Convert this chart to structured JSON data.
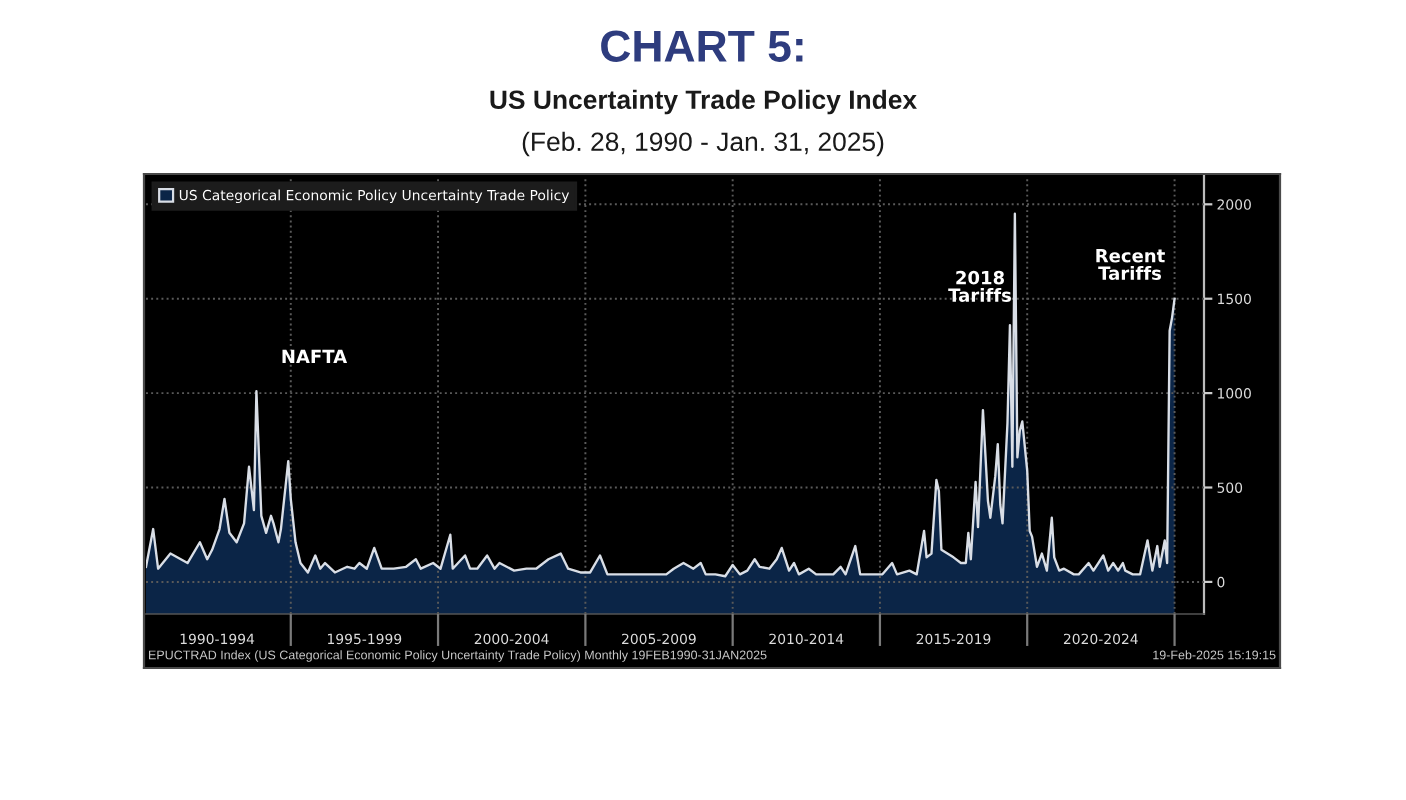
{
  "chart_data": {
    "type": "area",
    "title": "CHART 5:",
    "subtitle": "US Uncertainty Trade Policy Index\n(Feb. 28, 1990 - Jan. 31, 2025)",
    "x": [
      "1990-02",
      "1990-05",
      "1990-07",
      "1990-12",
      "1991-07",
      "1991-12",
      "1992-03",
      "1992-05",
      "1992-08",
      "1992-10",
      "1992-12",
      "1993-03",
      "1993-06",
      "1993-08",
      "1993-10",
      "1993-11",
      "1994-01",
      "1994-03",
      "1994-05",
      "1994-06",
      "1994-08",
      "1994-09",
      "1994-12",
      "1995-01",
      "1995-03",
      "1995-05",
      "1995-08",
      "1995-11",
      "1996-01",
      "1996-03",
      "1996-07",
      "1996-12",
      "1997-03",
      "1997-05",
      "1997-08",
      "1997-11",
      "1998-02",
      "1998-07",
      "1998-12",
      "1999-04",
      "1999-06",
      "1999-11",
      "2000-02",
      "2000-06",
      "2000-07",
      "2000-12",
      "2001-02",
      "2001-05",
      "2001-09",
      "2001-12",
      "2002-02",
      "2002-08",
      "2003-01",
      "2003-05",
      "2003-10",
      "2004-03",
      "2004-06",
      "2004-11",
      "2005-03",
      "2005-07",
      "2005-10",
      "2006-12",
      "2007-10",
      "2008-01",
      "2008-05",
      "2008-09",
      "2008-12",
      "2009-02",
      "2009-06",
      "2009-10",
      "2010-01",
      "2010-04",
      "2010-07",
      "2010-10",
      "2010-12",
      "2011-04",
      "2011-07",
      "2011-09",
      "2011-12",
      "2012-02",
      "2012-04",
      "2012-08",
      "2012-11",
      "2013-06",
      "2013-09",
      "2013-11",
      "2014-03",
      "2014-05",
      "2014-10",
      "2015-02",
      "2015-06",
      "2015-08",
      "2016-01",
      "2016-04",
      "2016-07",
      "2016-08",
      "2016-10",
      "2016-12",
      "2017-01",
      "2017-02",
      "2017-07",
      "2017-10",
      "2017-12",
      "2018-01",
      "2018-02",
      "2018-04",
      "2018-05",
      "2018-07",
      "2018-09",
      "2018-10",
      "2018-12",
      "2019-01",
      "2019-02",
      "2019-03",
      "2019-05",
      "2019-06",
      "2019-07",
      "2019-08",
      "2019-09",
      "2019-10",
      "2019-11",
      "2020-01",
      "2020-02",
      "2020-03",
      "2020-05",
      "2020-07",
      "2020-09",
      "2020-11",
      "2020-12",
      "2021-02",
      "2021-04",
      "2021-08",
      "2021-10",
      "2022-02",
      "2022-04",
      "2022-06",
      "2022-08",
      "2022-10",
      "2022-12",
      "2023-02",
      "2023-04",
      "2023-05",
      "2023-08",
      "2023-11",
      "2024-02",
      "2024-04",
      "2024-06",
      "2024-07",
      "2024-09",
      "2024-10",
      "2024-11",
      "2024-12",
      "2025-01"
    ],
    "series": [
      {
        "name": "US Categorical Economic Policy Uncertainty Trade Policy",
        "color": "#0b2547",
        "values": [
          80,
          280,
          70,
          150,
          100,
          210,
          120,
          170,
          280,
          440,
          260,
          210,
          310,
          610,
          380,
          1010,
          350,
          260,
          350,
          310,
          210,
          280,
          640,
          440,
          210,
          100,
          50,
          140,
          70,
          100,
          50,
          80,
          70,
          100,
          70,
          180,
          70,
          70,
          80,
          120,
          70,
          100,
          70,
          250,
          70,
          140,
          70,
          70,
          140,
          70,
          100,
          60,
          70,
          70,
          120,
          150,
          70,
          50,
          50,
          140,
          40,
          40,
          40,
          70,
          100,
          70,
          100,
          40,
          40,
          30,
          90,
          40,
          60,
          120,
          80,
          70,
          120,
          180,
          60,
          100,
          40,
          70,
          40,
          40,
          80,
          40,
          190,
          40,
          40,
          40,
          100,
          40,
          60,
          40,
          270,
          130,
          150,
          540,
          480,
          170,
          130,
          100,
          100,
          260,
          120,
          530,
          290,
          910,
          430,
          340,
          560,
          730,
          410,
          310,
          840,
          1360,
          610,
          1950,
          660,
          800,
          850,
          590,
          270,
          240,
          80,
          150,
          60,
          340,
          130,
          60,
          70,
          40,
          40,
          100,
          60,
          100,
          140,
          60,
          100,
          60,
          100,
          60,
          40,
          40,
          220,
          60,
          190,
          80,
          220,
          100,
          1330,
          1400,
          1500
        ]
      }
    ],
    "bands": [
      {
        "axis": "y",
        "from": -170,
        "to": 0,
        "color": "#0b2547"
      }
    ],
    "xlim": [
      "1990-02",
      "2026-01"
    ],
    "ylim": [
      -170,
      2150
    ],
    "xticks": [
      {
        "value": "1992-07",
        "label": "1990-1994"
      },
      {
        "value": "1995",
        "label": null
      },
      {
        "value": "1997-07",
        "label": "1995-1999"
      },
      {
        "value": "2000",
        "label": null
      },
      {
        "value": "2002-07",
        "label": "2000-2004"
      },
      {
        "value": "2005",
        "label": null
      },
      {
        "value": "2007-07",
        "label": "2005-2009"
      },
      {
        "value": "2010",
        "label": null
      },
      {
        "value": "2012-07",
        "label": "2010-2014"
      },
      {
        "value": "2015",
        "label": null
      },
      {
        "value": "2017-07",
        "label": "2015-2019"
      },
      {
        "value": "2020",
        "label": null
      },
      {
        "value": "2022-07",
        "label": "2020-2024"
      },
      {
        "value": "2025",
        "label": null
      }
    ],
    "yticks": [
      0,
      500,
      1000,
      1500,
      2000
    ],
    "grid": true,
    "legend": "top left",
    "annotations": [
      "NAFTA",
      "2018\nTariffs",
      "Recent\nTariffs",
      "EPUCTRAD Index (US Categorical Economic Policy Uncertainty Trade Policy) Monthly 19FEB1990-31JAN2025",
      "19-Feb-2025 15:19:15"
    ]
  }
}
